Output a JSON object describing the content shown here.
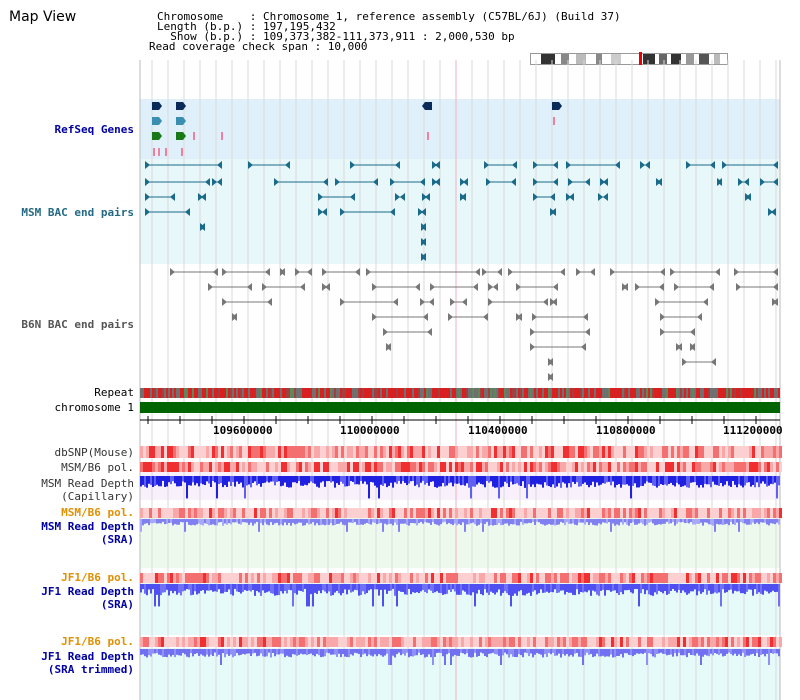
{
  "title": "Map View",
  "info": {
    "chromosome_line": "Chromosome    : Chromosome 1, reference assembly (C57BL/6J) (Build 37)",
    "length_line": "Length (b.p.) : 197,195,432",
    "show_line": "  Show (b.p.) : 109,373,382-111,373,911 : 2,000,530 bp",
    "coverage_line": "Read coverage check span : 10,000"
  },
  "tracks": {
    "refseq": "RefSeq Genes",
    "msm_bac": "MSM BAC end pairs",
    "b6n_bac": "B6N BAC end pairs",
    "repeat": "Repeat",
    "chromosome": "chromosome 1",
    "dbsnp": "dbSNP(Mouse)",
    "msm_b6_pol": "MSM/B6 pol.",
    "msm_depth_cap_1": "MSM Read Depth",
    "msm_depth_cap_2": "(Capillary)",
    "msm_b6_pol2": "MSM/B6 pol.",
    "msm_depth_sra_1": "MSM Read Depth",
    "msm_depth_sra_2": "(SRA)",
    "jf1_b6_pol": "JF1/B6 pol.",
    "jf1_depth_sra_1": "JF1 Read Depth",
    "jf1_depth_sra_2": "(SRA)",
    "jf1_b6_pol2": "JF1/B6 pol.",
    "jf1_depth_trim_1": "JF1 Read Depth",
    "jf1_depth_trim_2": "(SRA trimmed)"
  },
  "axis_ticks": [
    "109600000",
    "110000000",
    "110400000",
    "110800000",
    "111200000"
  ],
  "colors": {
    "refseq_bg": "#dff0fa",
    "msm_bg": "#e8f7fa",
    "repeat_red": "#e02020",
    "chromosome_green": "#006400",
    "depth_blue": "#4a4aff",
    "pol_red": "#f04040"
  }
}
